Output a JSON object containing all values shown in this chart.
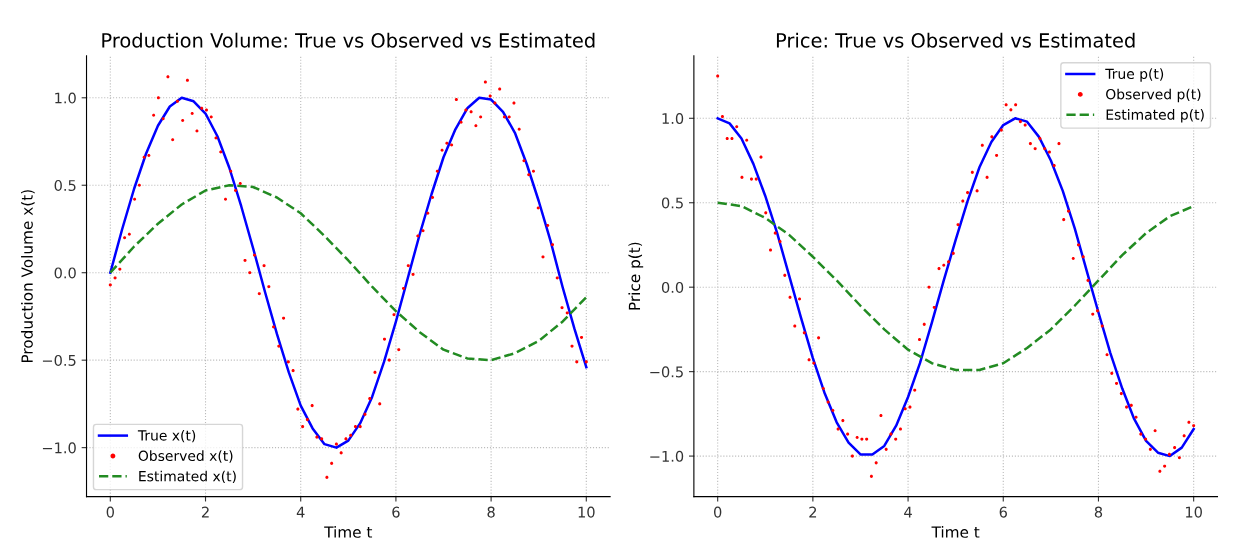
{
  "chart_data": [
    {
      "type": "line",
      "title": "Production Volume: True vs Observed vs Estimated",
      "xlabel": "Time t",
      "ylabel": "Production Volume x(t)",
      "xlim": [
        -0.5,
        10.5
      ],
      "xticks": [
        0,
        2,
        4,
        6,
        8,
        10
      ],
      "ylim": [
        -1.28,
        1.24
      ],
      "yticks": [
        {
          "value": -1.0,
          "label": "−1.0"
        },
        {
          "value": -0.5,
          "label": "−0.5"
        },
        {
          "value": 0.0,
          "label": "0.0"
        },
        {
          "value": 0.5,
          "label": "0.5"
        },
        {
          "value": 1.0,
          "label": "1.0"
        }
      ],
      "grid": true,
      "legend": "bottom left",
      "series": [
        {
          "name": "True x(t)",
          "color": "#0000ff",
          "line_style": "solid",
          "marker": "none",
          "x": [
            0,
            0.25,
            0.5,
            0.75,
            1,
            1.25,
            1.5,
            1.75,
            2,
            2.25,
            2.5,
            2.75,
            3,
            3.25,
            3.5,
            3.75,
            4,
            4.25,
            4.5,
            4.75,
            5,
            5.25,
            5.5,
            5.75,
            6,
            6.25,
            6.5,
            6.75,
            7,
            7.25,
            7.5,
            7.75,
            8,
            8.25,
            8.5,
            8.75,
            9,
            9.25,
            9.5,
            9.75,
            10
          ],
          "values": [
            0,
            0.25,
            0.48,
            0.68,
            0.84,
            0.95,
            1.0,
            0.98,
            0.91,
            0.78,
            0.6,
            0.38,
            0.14,
            -0.11,
            -0.35,
            -0.57,
            -0.76,
            -0.89,
            -0.98,
            -1.0,
            -0.96,
            -0.86,
            -0.71,
            -0.51,
            -0.28,
            -0.03,
            0.22,
            0.45,
            0.66,
            0.82,
            0.94,
            1.0,
            0.99,
            0.92,
            0.8,
            0.62,
            0.41,
            0.18,
            -0.08,
            -0.32,
            -0.54
          ]
        },
        {
          "name": "Observed x(t)",
          "type": "scatter",
          "color": "#ff0000",
          "marker": "circle",
          "x": [
            0,
            0.1,
            0.2,
            0.3,
            0.4,
            0.51,
            0.61,
            0.71,
            0.81,
            0.91,
            1.01,
            1.11,
            1.21,
            1.31,
            1.41,
            1.52,
            1.62,
            1.72,
            1.82,
            1.92,
            2.02,
            2.12,
            2.22,
            2.32,
            2.42,
            2.53,
            2.63,
            2.73,
            2.83,
            2.93,
            3.03,
            3.13,
            3.23,
            3.33,
            3.43,
            3.54,
            3.64,
            3.74,
            3.84,
            3.94,
            4.04,
            4.14,
            4.24,
            4.34,
            4.44,
            4.55,
            4.65,
            4.75,
            4.85,
            4.95,
            5.05,
            5.15,
            5.25,
            5.35,
            5.45,
            5.56,
            5.66,
            5.76,
            5.86,
            5.96,
            6.06,
            6.16,
            6.26,
            6.36,
            6.46,
            6.57,
            6.67,
            6.77,
            6.87,
            6.97,
            7.07,
            7.17,
            7.27,
            7.37,
            7.47,
            7.58,
            7.68,
            7.78,
            7.88,
            7.98,
            8.08,
            8.18,
            8.28,
            8.38,
            8.48,
            8.59,
            8.69,
            8.79,
            8.89,
            8.99,
            9.09,
            9.19,
            9.29,
            9.39,
            9.49,
            9.6,
            9.7,
            9.8,
            9.9,
            10
          ],
          "values": [
            -0.07,
            -0.03,
            0.02,
            0.2,
            0.22,
            0.42,
            0.5,
            0.66,
            0.67,
            0.9,
            1.0,
            0.88,
            1.12,
            0.76,
            0.98,
            0.87,
            1.1,
            0.91,
            0.81,
            0.94,
            0.93,
            0.89,
            0.77,
            0.69,
            0.42,
            0.58,
            0.47,
            0.51,
            0.07,
            0.0,
            0.1,
            -0.12,
            0.04,
            -0.08,
            -0.31,
            -0.42,
            -0.26,
            -0.51,
            -0.56,
            -0.78,
            -0.88,
            -0.84,
            -0.76,
            -0.94,
            -0.95,
            -1.17,
            -1.09,
            -0.98,
            -1.03,
            -0.95,
            -0.93,
            -0.88,
            -0.88,
            -0.81,
            -0.72,
            -0.57,
            -0.75,
            -0.38,
            -0.5,
            -0.24,
            -0.44,
            -0.09,
            0.04,
            -0.01,
            0.21,
            0.24,
            0.34,
            0.43,
            0.58,
            0.7,
            0.74,
            0.73,
            0.99,
            0.86,
            0.93,
            0.92,
            0.84,
            0.89,
            1.09,
            1.01,
            0.97,
            1.05,
            0.89,
            0.89,
            0.97,
            0.82,
            0.64,
            0.56,
            0.58,
            0.37,
            0.09,
            0.27,
            0.16,
            -0.03,
            -0.2,
            -0.23,
            -0.42,
            -0.51,
            -0.37,
            -0.51
          ]
        },
        {
          "name": "Estimated x(t)",
          "color": "#228b22",
          "line_style": "dashed",
          "marker": "none",
          "x": [
            0,
            0.5,
            1,
            1.5,
            2,
            2.5,
            3,
            3.5,
            4,
            4.5,
            5,
            5.5,
            6,
            6.5,
            7,
            7.5,
            8,
            8.5,
            9,
            9.5,
            10
          ],
          "values": [
            0,
            0.15,
            0.28,
            0.39,
            0.47,
            0.5,
            0.49,
            0.43,
            0.34,
            0.21,
            0.07,
            -0.08,
            -0.22,
            -0.34,
            -0.44,
            -0.49,
            -0.5,
            -0.46,
            -0.39,
            -0.28,
            -0.14
          ]
        }
      ]
    },
    {
      "type": "line",
      "title": "Price: True vs Observed vs Estimated",
      "xlabel": "Time t",
      "ylabel": "Price p(t)",
      "xlim": [
        -0.5,
        10.5
      ],
      "xticks": [
        0,
        2,
        4,
        6,
        8,
        10
      ],
      "ylim": [
        -1.24,
        1.37
      ],
      "yticks": [
        {
          "value": -1.0,
          "label": "−1.0"
        },
        {
          "value": -0.5,
          "label": "−0.5"
        },
        {
          "value": 0.0,
          "label": "0.0"
        },
        {
          "value": 0.5,
          "label": "0.5"
        },
        {
          "value": 1.0,
          "label": "1.0"
        }
      ],
      "grid": true,
      "legend": "top right",
      "series": [
        {
          "name": "True p(t)",
          "color": "#0000ff",
          "line_style": "solid",
          "marker": "none",
          "x": [
            0,
            0.25,
            0.5,
            0.75,
            1,
            1.25,
            1.5,
            1.75,
            2,
            2.25,
            2.5,
            2.75,
            3,
            3.25,
            3.5,
            3.75,
            4,
            4.25,
            4.5,
            4.75,
            5,
            5.25,
            5.5,
            5.75,
            6,
            6.25,
            6.5,
            6.75,
            7,
            7.25,
            7.5,
            7.75,
            8,
            8.25,
            8.5,
            8.75,
            9,
            9.25,
            9.5,
            9.75,
            10
          ],
          "values": [
            1.0,
            0.97,
            0.88,
            0.73,
            0.54,
            0.32,
            0.07,
            -0.18,
            -0.42,
            -0.63,
            -0.8,
            -0.92,
            -0.99,
            -0.99,
            -0.94,
            -0.82,
            -0.65,
            -0.45,
            -0.21,
            0.04,
            0.28,
            0.51,
            0.71,
            0.86,
            0.96,
            1.0,
            0.98,
            0.89,
            0.75,
            0.57,
            0.35,
            0.1,
            -0.15,
            -0.39,
            -0.6,
            -0.78,
            -0.91,
            -0.98,
            -1.0,
            -0.95,
            -0.84
          ]
        },
        {
          "name": "Observed p(t)",
          "type": "scatter",
          "color": "#ff0000",
          "marker": "circle",
          "x": [
            0,
            0.1,
            0.2,
            0.3,
            0.4,
            0.51,
            0.61,
            0.71,
            0.81,
            0.91,
            1.01,
            1.11,
            1.21,
            1.31,
            1.41,
            1.52,
            1.62,
            1.72,
            1.82,
            1.92,
            2.02,
            2.12,
            2.22,
            2.32,
            2.42,
            2.53,
            2.63,
            2.73,
            2.83,
            2.93,
            3.03,
            3.13,
            3.23,
            3.33,
            3.43,
            3.54,
            3.64,
            3.74,
            3.84,
            3.94,
            4.04,
            4.14,
            4.24,
            4.34,
            4.44,
            4.55,
            4.65,
            4.75,
            4.85,
            4.95,
            5.05,
            5.15,
            5.25,
            5.35,
            5.45,
            5.56,
            5.66,
            5.76,
            5.86,
            5.96,
            6.06,
            6.16,
            6.26,
            6.36,
            6.46,
            6.57,
            6.67,
            6.77,
            6.87,
            6.97,
            7.07,
            7.17,
            7.27,
            7.37,
            7.47,
            7.58,
            7.68,
            7.78,
            7.88,
            7.98,
            8.08,
            8.18,
            8.28,
            8.38,
            8.48,
            8.59,
            8.69,
            8.79,
            8.89,
            8.99,
            9.09,
            9.19,
            9.29,
            9.39,
            9.49,
            9.6,
            9.7,
            9.8,
            9.9,
            10
          ],
          "values": [
            1.25,
            1.01,
            0.88,
            0.88,
            0.95,
            0.65,
            0.87,
            0.64,
            0.64,
            0.77,
            0.44,
            0.22,
            0.32,
            0.27,
            0.07,
            -0.06,
            -0.23,
            -0.07,
            -0.27,
            -0.43,
            -0.45,
            -0.3,
            -0.6,
            -0.68,
            -0.73,
            -0.84,
            -0.79,
            -0.87,
            -1.0,
            -0.89,
            -0.9,
            -0.9,
            -1.12,
            -1.04,
            -0.76,
            -0.96,
            -0.87,
            -0.9,
            -0.84,
            -0.72,
            -0.71,
            -0.61,
            -0.31,
            -0.22,
            0.0,
            -0.12,
            0.11,
            0.13,
            0.15,
            0.2,
            0.37,
            0.51,
            0.56,
            0.68,
            0.57,
            0.84,
            0.65,
            0.89,
            0.78,
            0.93,
            1.08,
            1.05,
            1.08,
            0.98,
            0.96,
            0.85,
            0.82,
            0.88,
            0.82,
            0.8,
            0.72,
            0.85,
            0.4,
            0.45,
            0.17,
            0.25,
            0.18,
            0.04,
            -0.16,
            -0.14,
            -0.23,
            -0.4,
            -0.51,
            -0.57,
            -0.63,
            -0.71,
            -0.7,
            -0.77,
            -0.87,
            -0.9,
            -0.96,
            -0.85,
            -1.09,
            -1.06,
            -0.99,
            -0.95,
            -1.01,
            -0.88,
            -0.8,
            -0.82
          ]
        },
        {
          "name": "Estimated p(t)",
          "color": "#228b22",
          "line_style": "dashed",
          "marker": "none",
          "x": [
            0,
            0.5,
            1,
            1.5,
            2,
            2.5,
            3,
            3.5,
            4,
            4.5,
            5,
            5.5,
            6,
            6.5,
            7,
            7.5,
            8,
            8.5,
            9,
            9.5,
            10
          ],
          "values": [
            0.5,
            0.48,
            0.41,
            0.31,
            0.18,
            0.04,
            -0.11,
            -0.25,
            -0.37,
            -0.45,
            -0.49,
            -0.49,
            -0.45,
            -0.36,
            -0.25,
            -0.11,
            0.04,
            0.19,
            0.32,
            0.42,
            0.48
          ]
        }
      ]
    }
  ]
}
